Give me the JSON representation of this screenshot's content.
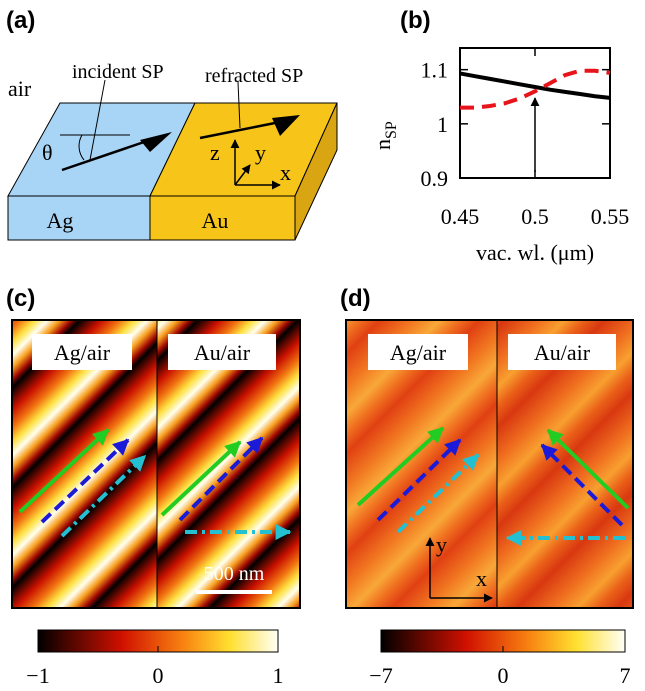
{
  "panel_a": {
    "label": "(a)",
    "medium": "air",
    "incident": "incident SP",
    "refracted": "refracted SP",
    "angle": "θ",
    "axis_z": "z",
    "axis_y": "y",
    "axis_x": "x",
    "left_metal": "Ag",
    "right_metal": "Au"
  },
  "chart_data": {
    "type": "line",
    "label": "(b)",
    "ylabel": "n",
    "ylabel_sub": "SP",
    "xlabel": "vac. wl. (μm)",
    "x": [
      0.45,
      0.46,
      0.47,
      0.48,
      0.49,
      0.5,
      0.51,
      0.52,
      0.53,
      0.54,
      0.55
    ],
    "series": [
      {
        "color": "#000000",
        "dash": "solid",
        "values": [
          1.093,
          1.088,
          1.083,
          1.078,
          1.073,
          1.068,
          1.063,
          1.059,
          1.055,
          1.051,
          1.048
        ]
      },
      {
        "color": "#e8141b",
        "dash": "dashed",
        "values": [
          1.03,
          1.03,
          1.033,
          1.038,
          1.047,
          1.06,
          1.075,
          1.09,
          1.098,
          1.098,
          1.094
        ]
      }
    ],
    "xlim": [
      0.45,
      0.55
    ],
    "xticks": [
      0.45,
      0.5,
      0.55
    ],
    "ylim": [
      0.9,
      1.14
    ],
    "yticks": [
      0.9,
      1,
      1.1
    ]
  },
  "panel_c": {
    "label": "(c)",
    "left": "Ag/air",
    "right": "Au/air",
    "scale_bar": "500 nm",
    "clim": [
      -1,
      1
    ],
    "colorbar_ticks": [
      {
        "value": -1,
        "label": "−1"
      },
      0,
      1
    ]
  },
  "panel_d": {
    "label": "(d)",
    "left": "Ag/air",
    "right": "Au/air",
    "axis_y": "y",
    "axis_x": "x",
    "clim": [
      -7,
      7
    ],
    "colorbar_ticks": [
      {
        "value": -7,
        "label": "−7"
      },
      0,
      7
    ]
  }
}
